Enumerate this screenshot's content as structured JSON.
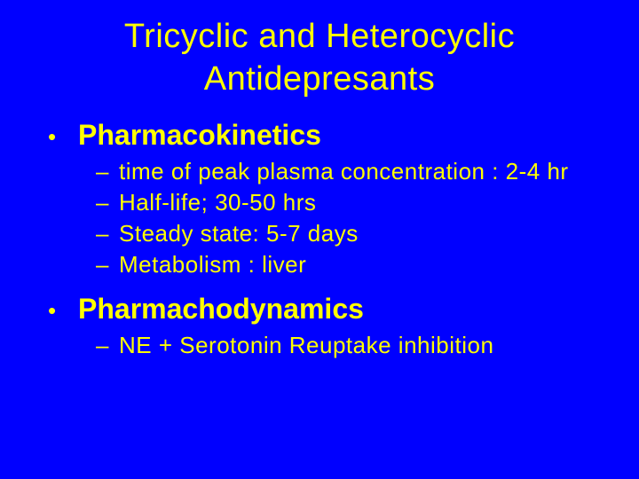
{
  "slide": {
    "background_color": "#0000ff",
    "text_color": "#ffff00",
    "title_line1": "Tricyclic and Heterocyclic",
    "title_line2": "Antidepresants",
    "title_fontsize": 38,
    "title_weight": 400,
    "sections": [
      {
        "bullet": "•",
        "label": "Pharmacokinetics",
        "label_fontsize": 32,
        "label_weight": 700,
        "items": [
          {
            "dash": "–",
            "text": "time of peak plasma concentration : 2-4 hr"
          },
          {
            "dash": "–",
            "text": "Half-life; 30-50 hrs"
          },
          {
            "dash": "–",
            "text": "Steady state: 5-7 days"
          },
          {
            "dash": "–",
            "text": "Metabolism : liver"
          }
        ],
        "item_fontsize": 26
      },
      {
        "bullet": "•",
        "label": "Pharmachodynamics",
        "label_fontsize": 32,
        "label_weight": 700,
        "items": [
          {
            "dash": "–",
            "text": "NE + Serotonin Reuptake inhibition"
          }
        ],
        "item_fontsize": 26
      }
    ]
  }
}
